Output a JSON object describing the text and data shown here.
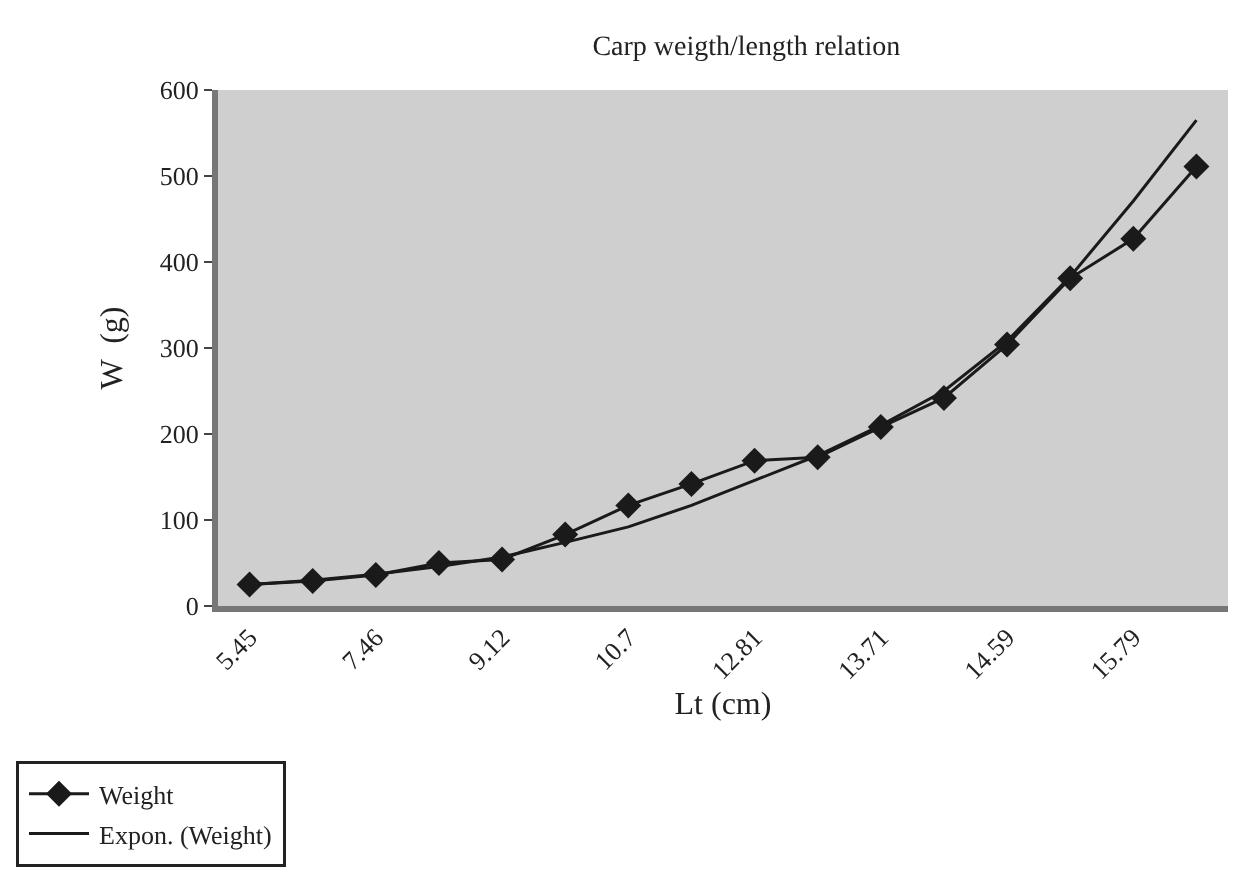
{
  "chart_data": {
    "type": "line",
    "title": "Carp weigth/length relation",
    "xlabel": "Lt (cm)",
    "ylabel": "W  (g)",
    "categories": [
      "5.45",
      null,
      "7.46",
      null,
      "9.12",
      null,
      "10.7",
      null,
      "12.81",
      null,
      "13.71",
      null,
      "14.59",
      null,
      "15.79",
      null
    ],
    "series": [
      {
        "name": "Weight",
        "color": "#1a1a1a",
        "marker": "diamond",
        "values": [
          25,
          29,
          36,
          50,
          54,
          83,
          117,
          142,
          169,
          173,
          208,
          242,
          304,
          381,
          427,
          511
        ]
      },
      {
        "name": "Expon. (Weight)",
        "color": "#1a1a1a",
        "marker": "none",
        "values": [
          25,
          30,
          37,
          46,
          57,
          74,
          92,
          117,
          146,
          175,
          210,
          250,
          308,
          383,
          471,
          565
        ]
      }
    ],
    "ylim": [
      0,
      600
    ],
    "yticks": [
      0,
      100,
      200,
      300,
      400,
      500,
      600
    ],
    "grid": false,
    "legend": "bottom left"
  }
}
